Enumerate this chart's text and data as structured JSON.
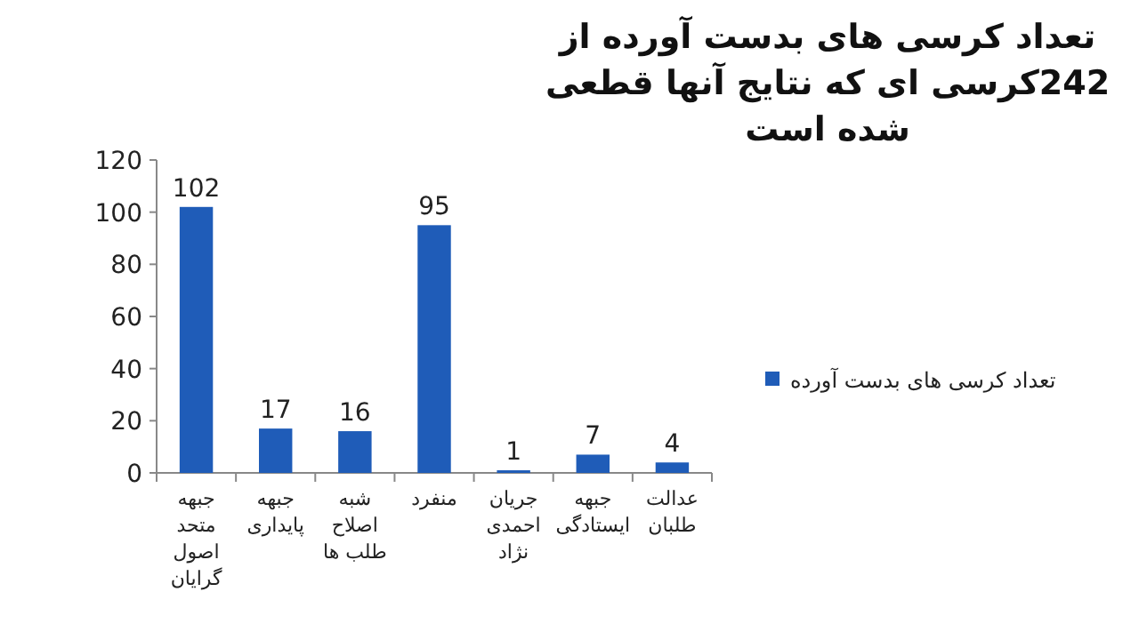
{
  "chart_data": {
    "type": "bar",
    "title": "تعداد کرسی های بدست آورده از 242کرسی ای که نتایج آنها قطعی شده است",
    "categories": [
      "جبهه متحد اصول گرایان",
      "جبهه پایداری",
      "شبه اصلاح طلب ها",
      "منفرد",
      "جریان احمدی نژاد",
      "جبهه ایستادگی",
      "عدالت طلبان"
    ],
    "series": [
      {
        "name": "تعداد کرسی های بدست آورده",
        "color": "#1f5cb8",
        "values": [
          102,
          17,
          16,
          95,
          1,
          7,
          4
        ]
      }
    ],
    "ylim": [
      0,
      120
    ],
    "yticks": [
      0,
      20,
      40,
      60,
      80,
      100,
      120
    ],
    "data_labels": true,
    "legend": "right",
    "grid": false
  }
}
